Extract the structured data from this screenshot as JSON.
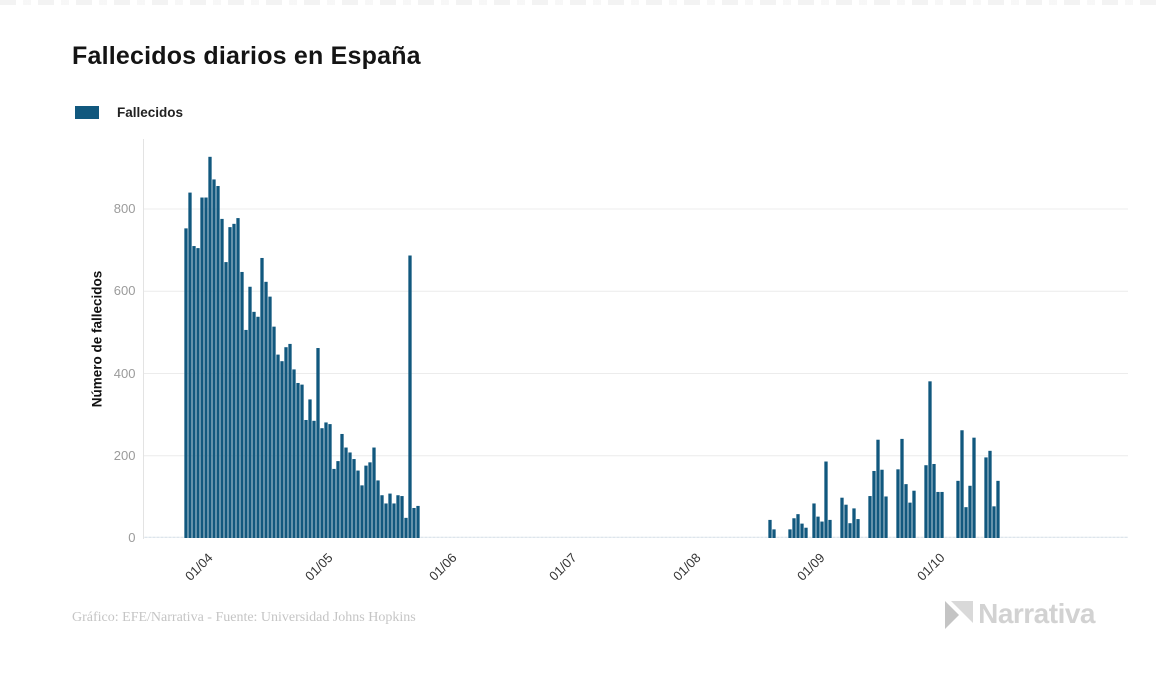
{
  "header": {
    "title": "Fallecidos diarios en España"
  },
  "legend": {
    "label": "Fallecidos",
    "swatch_color": "#11587e"
  },
  "footer": {
    "credit": "Gráfico: EFE/Narrativa - Fuente: Universidad Johns Hopkins",
    "brand": "Narrativa"
  },
  "chart_data": {
    "type": "bar",
    "title": "Fallecidos diarios en España",
    "series_name": "Fallecidos",
    "xlabel": "",
    "ylabel": "Número de fallecidos",
    "ylim": [
      0,
      950
    ],
    "y_ticks": [
      0,
      200,
      400,
      600,
      800
    ],
    "x_ticks": [
      {
        "date": "2020-04-01",
        "label": "01/04"
      },
      {
        "date": "2020-05-01",
        "label": "01/05"
      },
      {
        "date": "2020-06-01",
        "label": "01/06"
      },
      {
        "date": "2020-07-01",
        "label": "01/07"
      },
      {
        "date": "2020-08-01",
        "label": "01/08"
      },
      {
        "date": "2020-09-01",
        "label": "01/09"
      },
      {
        "date": "2020-10-01",
        "label": "01/10"
      }
    ],
    "x_domain": [
      "2020-03-18",
      "2020-11-18"
    ],
    "bar_color": "#11587e",
    "zero_marker_color": "#dde5ec",
    "grid_color": "#ececec",
    "axis_line_color": "#e3e3e3",
    "grid": "horizontal",
    "legend_position": "top-left",
    "zero_days_rendered_as_dashes": true,
    "points": [
      [
        "2020-03-28",
        753
      ],
      [
        "2020-03-29",
        840
      ],
      [
        "2020-03-30",
        710
      ],
      [
        "2020-03-31",
        705
      ],
      [
        "2020-04-01",
        828
      ],
      [
        "2020-04-02",
        828
      ],
      [
        "2020-04-03",
        927
      ],
      [
        "2020-04-04",
        872
      ],
      [
        "2020-04-05",
        856
      ],
      [
        "2020-04-06",
        776
      ],
      [
        "2020-04-07",
        671
      ],
      [
        "2020-04-08",
        756
      ],
      [
        "2020-04-09",
        764
      ],
      [
        "2020-04-10",
        778
      ],
      [
        "2020-04-11",
        647
      ],
      [
        "2020-04-12",
        506
      ],
      [
        "2020-04-13",
        611
      ],
      [
        "2020-04-14",
        550
      ],
      [
        "2020-04-15",
        538
      ],
      [
        "2020-04-16",
        681
      ],
      [
        "2020-04-17",
        623
      ],
      [
        "2020-04-18",
        587
      ],
      [
        "2020-04-19",
        514
      ],
      [
        "2020-04-20",
        446
      ],
      [
        "2020-04-21",
        430
      ],
      [
        "2020-04-22",
        464
      ],
      [
        "2020-04-23",
        472
      ],
      [
        "2020-04-24",
        410
      ],
      [
        "2020-04-25",
        377
      ],
      [
        "2020-04-26",
        373
      ],
      [
        "2020-04-27",
        287
      ],
      [
        "2020-04-28",
        337
      ],
      [
        "2020-04-29",
        285
      ],
      [
        "2020-04-30",
        462
      ],
      [
        "2020-05-01",
        267
      ],
      [
        "2020-05-02",
        281
      ],
      [
        "2020-05-03",
        277
      ],
      [
        "2020-05-04",
        168
      ],
      [
        "2020-05-05",
        187
      ],
      [
        "2020-05-06",
        253
      ],
      [
        "2020-05-07",
        220
      ],
      [
        "2020-05-08",
        208
      ],
      [
        "2020-05-09",
        192
      ],
      [
        "2020-05-10",
        164
      ],
      [
        "2020-05-11",
        128
      ],
      [
        "2020-05-12",
        176
      ],
      [
        "2020-05-13",
        184
      ],
      [
        "2020-05-14",
        220
      ],
      [
        "2020-05-15",
        140
      ],
      [
        "2020-05-16",
        104
      ],
      [
        "2020-05-17",
        84
      ],
      [
        "2020-05-18",
        108
      ],
      [
        "2020-05-19",
        84
      ],
      [
        "2020-05-20",
        104
      ],
      [
        "2020-05-21",
        102
      ],
      [
        "2020-05-22",
        49
      ],
      [
        "2020-05-23",
        687
      ],
      [
        "2020-05-24",
        73
      ],
      [
        "2020-05-25",
        78
      ],
      [
        "2020-08-21",
        44
      ],
      [
        "2020-08-22",
        21
      ],
      [
        "2020-08-26",
        21
      ],
      [
        "2020-08-27",
        48
      ],
      [
        "2020-08-28",
        58
      ],
      [
        "2020-08-29",
        35
      ],
      [
        "2020-08-30",
        25
      ],
      [
        "2020-09-01",
        84
      ],
      [
        "2020-09-02",
        52
      ],
      [
        "2020-09-03",
        40
      ],
      [
        "2020-09-04",
        186
      ],
      [
        "2020-09-05",
        44
      ],
      [
        "2020-09-08",
        98
      ],
      [
        "2020-09-09",
        81
      ],
      [
        "2020-09-10",
        36
      ],
      [
        "2020-09-11",
        72
      ],
      [
        "2020-09-12",
        46
      ],
      [
        "2020-09-15",
        102
      ],
      [
        "2020-09-16",
        163
      ],
      [
        "2020-09-17",
        239
      ],
      [
        "2020-09-18",
        166
      ],
      [
        "2020-09-19",
        101
      ],
      [
        "2020-09-22",
        167
      ],
      [
        "2020-09-23",
        241
      ],
      [
        "2020-09-24",
        131
      ],
      [
        "2020-09-25",
        86
      ],
      [
        "2020-09-26",
        115
      ],
      [
        "2020-09-29",
        177
      ],
      [
        "2020-09-30",
        381
      ],
      [
        "2020-10-01",
        180
      ],
      [
        "2020-10-02",
        112
      ],
      [
        "2020-10-03",
        112
      ],
      [
        "2020-10-07",
        139
      ],
      [
        "2020-10-08",
        262
      ],
      [
        "2020-10-09",
        75
      ],
      [
        "2020-10-10",
        127
      ],
      [
        "2020-10-11",
        244
      ],
      [
        "2020-10-14",
        196
      ],
      [
        "2020-10-15",
        212
      ],
      [
        "2020-10-16",
        77
      ],
      [
        "2020-10-17",
        139
      ]
    ]
  }
}
